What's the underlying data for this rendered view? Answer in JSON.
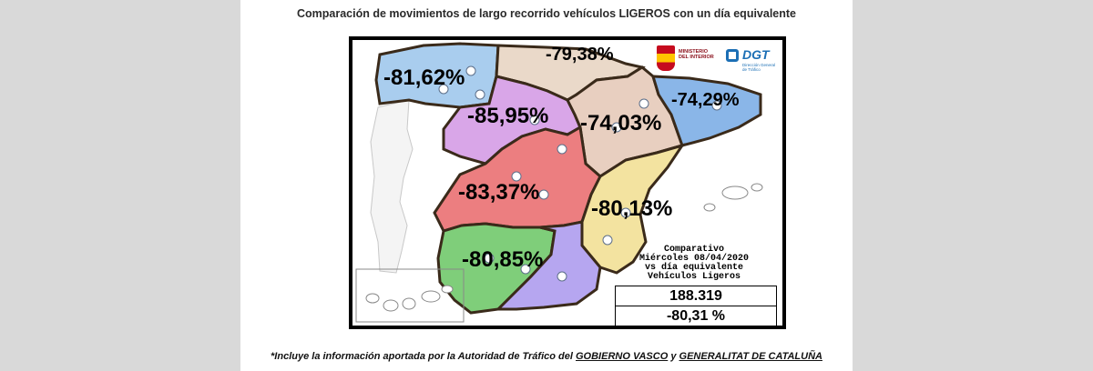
{
  "title": "Comparación de movimientos de largo recorrido vehículos LIGEROS con un día equivalente",
  "map": {
    "logos": {
      "ministry_lines": [
        "MINISTERIO",
        "DEL INTERIOR"
      ],
      "dgt_name": "DGT",
      "dgt_sub": "Dirección General de Tráfico"
    },
    "regions": [
      {
        "id": "northwest",
        "value": "-81,62%",
        "color": "#a9cdee"
      },
      {
        "id": "north",
        "value": "-79,38%",
        "color": "#ead9c9"
      },
      {
        "id": "castilla-leon",
        "value": "-85,95%",
        "color": "#d9a6e8"
      },
      {
        "id": "ebro",
        "value": "-74,03%",
        "color": "#e8cfc0"
      },
      {
        "id": "northeast",
        "value": "-74,29%",
        "color": "#8ab6e8"
      },
      {
        "id": "center",
        "value": "-83,37%",
        "color": "#ec7e80"
      },
      {
        "id": "east",
        "value": "-80,13%",
        "color": "#f3e3a0"
      },
      {
        "id": "south",
        "value": "-80,85%",
        "color": "#7fce7a"
      },
      {
        "id": "southeast",
        "value": "",
        "color": "#b6a6f0"
      }
    ],
    "comparison": {
      "line1": "Comparativo",
      "line2": "Miércoles 08/04/2020",
      "line3": "vs día equivalente",
      "line4": "Vehículos Ligeros"
    },
    "total_vehicles": "188.319",
    "total_change": "-80,31 %"
  },
  "footnote": {
    "prefix": "*Incluye la información aportada por la Autoridad de Tráfico del",
    "entity1": "GOBIERNO VASCO",
    "connector": "y",
    "entity2": "GENERALITAT DE CATALUÑA"
  }
}
